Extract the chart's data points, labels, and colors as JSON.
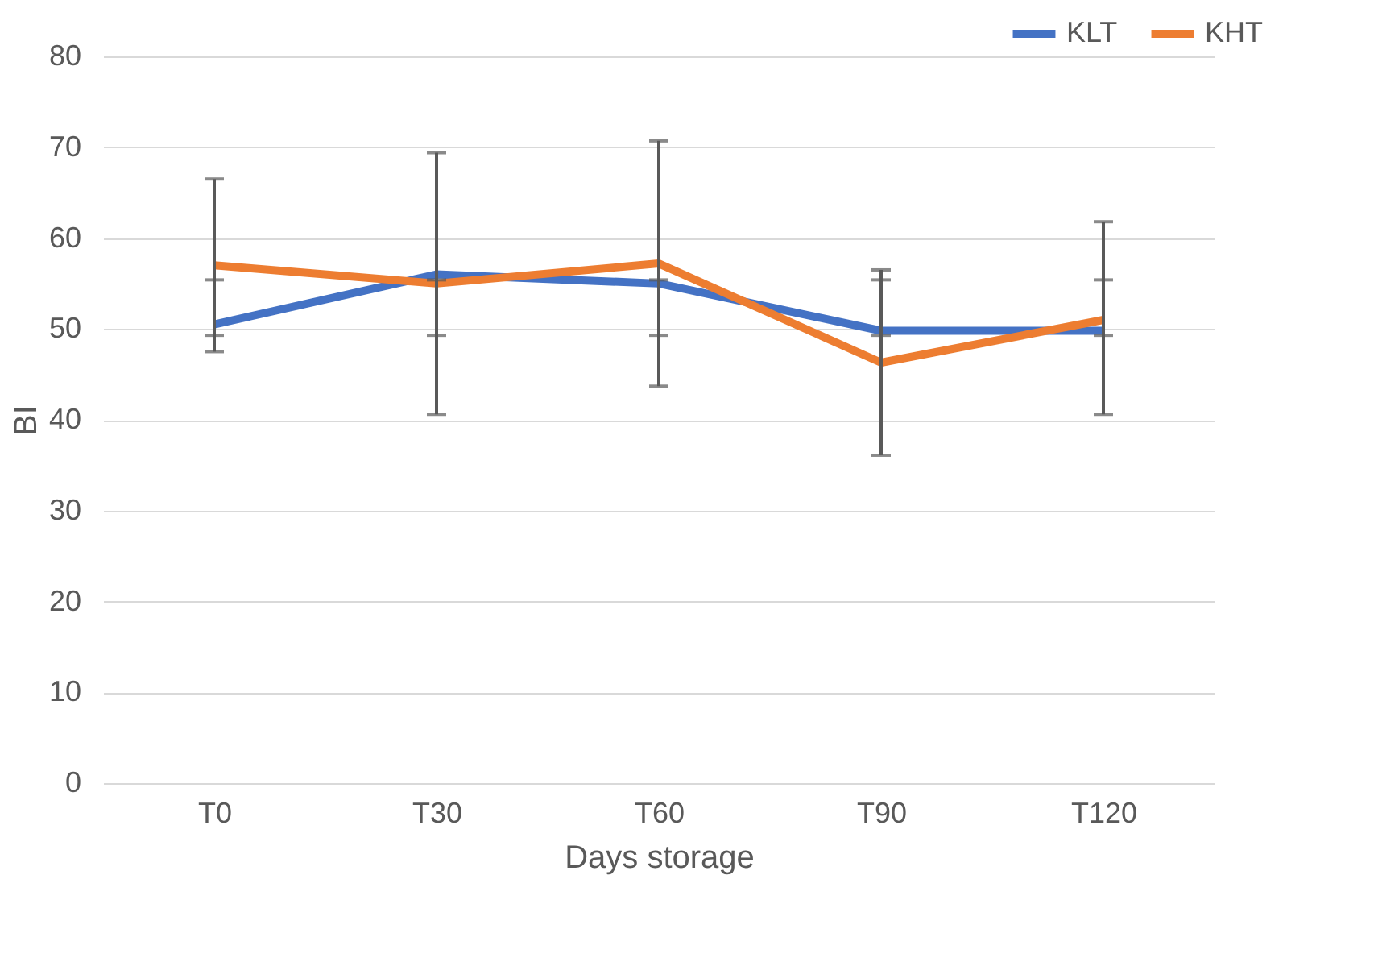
{
  "chart_data": {
    "type": "line",
    "xlabel": "Days storage",
    "ylabel": "BI",
    "categories": [
      "T0",
      "T30",
      "T60",
      "T90",
      "T120"
    ],
    "series": [
      {
        "name": "KLT",
        "color": "#4472c4",
        "values": [
          50.5,
          56,
          55,
          49.8,
          49.8
        ],
        "errors": [
          [
            49.3,
            55.4
          ],
          [
            49.3,
            55.4
          ],
          [
            49.3,
            55.4
          ],
          [
            49.3,
            55.4
          ],
          [
            49.3,
            55.4
          ]
        ]
      },
      {
        "name": "KHT",
        "color": "#ed7d31",
        "values": [
          57,
          55,
          57.2,
          46.3,
          51
        ],
        "errors": [
          [
            47.5,
            66.5
          ],
          [
            40.6,
            69.4
          ],
          [
            43.7,
            70.7
          ],
          [
            36.1,
            56.5
          ],
          [
            40.6,
            61.8
          ]
        ]
      }
    ],
    "ylim": [
      0,
      80
    ],
    "yticks": [
      0,
      10,
      20,
      30,
      40,
      50,
      60,
      70,
      80
    ],
    "grid": "y",
    "legend": "top right",
    "marker": "none",
    "line_style": "solid"
  }
}
